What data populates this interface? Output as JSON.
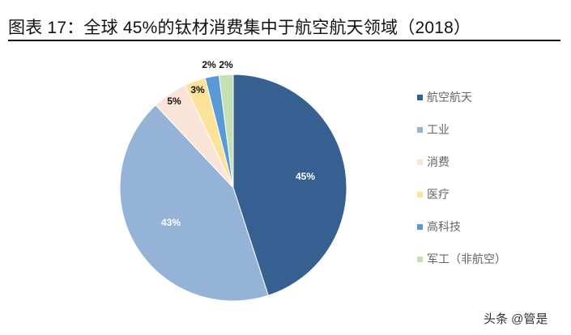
{
  "header": {
    "title": "图表 17：全球 45%的钛材消费集中于航空航天领域（2018）"
  },
  "watermark": "头条 @管是",
  "chart_data": {
    "type": "pie",
    "title": "图表 17：全球 45%的钛材消费集中于航空航天领域（2018）",
    "categories": [
      "航空航天",
      "工业",
      "消费",
      "医疗",
      "高科技",
      "军工（非航空）"
    ],
    "values": [
      45,
      43,
      5,
      3,
      2,
      2
    ],
    "labels": [
      "45%",
      "43%",
      "5%",
      "3%",
      "2%",
      "2%"
    ],
    "colors": [
      "#36608F",
      "#94B3D7",
      "#FAE3D7",
      "#FDE39A",
      "#5B9BD5",
      "#C6E0B5"
    ],
    "start_angle": "12 o'clock, clockwise",
    "legend_position": "right"
  },
  "legend": {
    "items": [
      {
        "label": "航空航天",
        "color": "#36608F"
      },
      {
        "label": "工业",
        "color": "#94B3D7"
      },
      {
        "label": "消费",
        "color": "#FAE3D7"
      },
      {
        "label": "医疗",
        "color": "#FDE39A"
      },
      {
        "label": "高科技",
        "color": "#5B9BD5"
      },
      {
        "label": "军工（非航空）",
        "color": "#C6E0B5"
      }
    ]
  }
}
